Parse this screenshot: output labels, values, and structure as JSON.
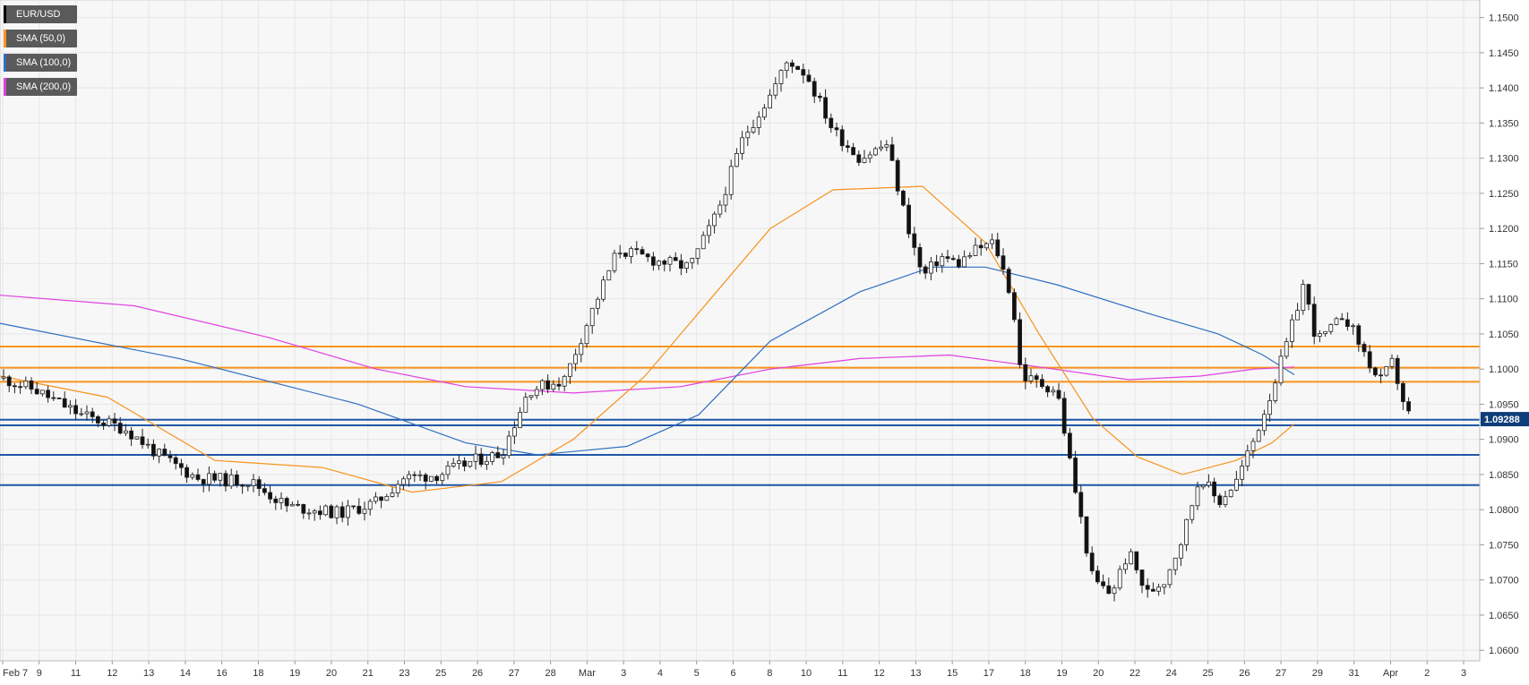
{
  "chart_data": {
    "type": "candlestick",
    "symbol": "EUR/USD",
    "legend": [
      {
        "label": "EUR/USD",
        "color": "#000000"
      },
      {
        "label": "SMA (50,0)",
        "color": "#f7931e"
      },
      {
        "label": "SMA (100,0)",
        "color": "#2e6fc0"
      },
      {
        "label": "SMA (200,0)",
        "color": "#e040e0"
      }
    ],
    "ylim": [
      1.0585,
      1.1525
    ],
    "y_ticks": [
      "1.0600",
      "1.0650",
      "1.0700",
      "1.0750",
      "1.0800",
      "1.0850",
      "1.0900",
      "1.0950",
      "1.1000",
      "1.1050",
      "1.1100",
      "1.1150",
      "1.1200",
      "1.1250",
      "1.1300",
      "1.1350",
      "1.1400",
      "1.1450",
      "1.1500"
    ],
    "x_labels": [
      "Feb 7",
      "9",
      "11",
      "12",
      "13",
      "14",
      "16",
      "18",
      "19",
      "20",
      "21",
      "23",
      "25",
      "26",
      "27",
      "28",
      "Mar",
      "3",
      "4",
      "5",
      "6",
      "8",
      "10",
      "11",
      "12",
      "13",
      "15",
      "17",
      "18",
      "19",
      "20",
      "22",
      "24",
      "25",
      "26",
      "27",
      "29",
      "31",
      "Apr",
      "2",
      "3"
    ],
    "last_price": "1.09288",
    "resistance_levels": [
      1.1032,
      1.1002,
      1.0982
    ],
    "support_levels": [
      1.0928,
      1.092,
      1.0878,
      1.0835
    ],
    "sma50": [
      [
        0,
        1.099
      ],
      [
        120,
        1.096
      ],
      [
        240,
        1.087
      ],
      [
        360,
        1.086
      ],
      [
        460,
        1.0825
      ],
      [
        560,
        1.084
      ],
      [
        640,
        1.09
      ],
      [
        720,
        1.099
      ],
      [
        800,
        1.111
      ],
      [
        860,
        1.12
      ],
      [
        930,
        1.1255
      ],
      [
        1030,
        1.126
      ],
      [
        1100,
        1.118
      ],
      [
        1160,
        1.105
      ],
      [
        1220,
        1.093
      ],
      [
        1270,
        1.0875
      ],
      [
        1320,
        1.085
      ],
      [
        1380,
        1.087
      ],
      [
        1420,
        1.0895
      ],
      [
        1445,
        1.0922
      ]
    ],
    "sma100": [
      [
        0,
        1.1065
      ],
      [
        200,
        1.1015
      ],
      [
        400,
        1.095
      ],
      [
        520,
        1.0895
      ],
      [
        600,
        1.0878
      ],
      [
        700,
        1.089
      ],
      [
        780,
        1.0935
      ],
      [
        860,
        1.104
      ],
      [
        960,
        1.111
      ],
      [
        1040,
        1.1145
      ],
      [
        1100,
        1.1145
      ],
      [
        1180,
        1.112
      ],
      [
        1280,
        1.108
      ],
      [
        1360,
        1.105
      ],
      [
        1410,
        1.102
      ],
      [
        1445,
        1.0992
      ]
    ],
    "sma200": [
      [
        0,
        1.1105
      ],
      [
        150,
        1.109
      ],
      [
        300,
        1.1045
      ],
      [
        420,
        1.1
      ],
      [
        520,
        1.0975
      ],
      [
        640,
        1.0966
      ],
      [
        760,
        1.0975
      ],
      [
        860,
        1.1
      ],
      [
        960,
        1.1015
      ],
      [
        1060,
        1.102
      ],
      [
        1160,
        1.1003
      ],
      [
        1260,
        1.0985
      ],
      [
        1340,
        1.099
      ],
      [
        1400,
        1.1
      ],
      [
        1445,
        1.1003
      ]
    ]
  }
}
